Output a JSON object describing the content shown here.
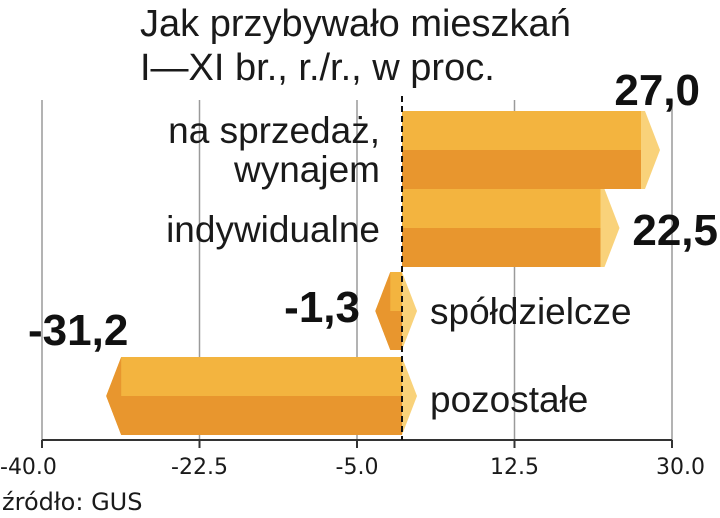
{
  "chart_data": {
    "type": "bar",
    "orientation": "horizontal",
    "title": "Jak przybywało mieszkań",
    "subtitle": "I—XI br., r./r., w proc.",
    "categories": [
      "na sprzedaż,\nwynajem",
      "indywidualne",
      "spółdzielcze",
      "pozostałe"
    ],
    "values": [
      27.0,
      22.5,
      -1.3,
      -31.2
    ],
    "value_labels": [
      "27,0",
      "22,5",
      "-1,3",
      "-31,2"
    ],
    "xlim": [
      -40,
      30
    ],
    "xticks": [
      -40,
      -22.5,
      -5,
      12.5,
      30
    ],
    "xtick_labels": [
      "-40.0",
      "-22.5",
      "-5.0",
      "12.5",
      "30.0"
    ],
    "grid": true,
    "source": "źródło: GUS",
    "colors": {
      "bar_top": "#F3B43F",
      "bar_bottom": "#E8962E",
      "bar_tip": "#F9D27A",
      "text": "#1a1a1a"
    }
  }
}
